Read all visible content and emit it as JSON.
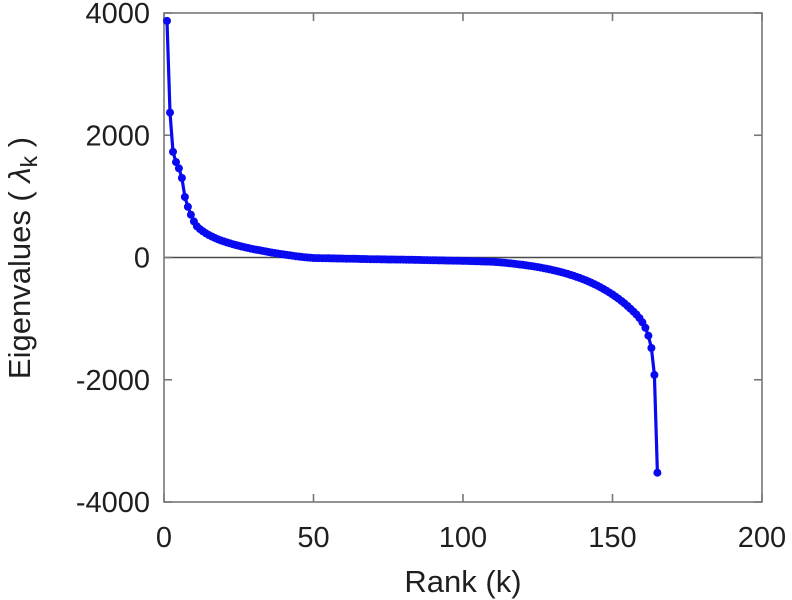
{
  "chart_data": {
    "type": "line",
    "title": "",
    "xlabel": "Rank (k)",
    "ylabel": "Eigenvalues ( λ_k )",
    "ylabel_parts": {
      "prefix": "Eigenvalues ( ",
      "symbol": "λ",
      "subscript": "k",
      "suffix": " )"
    },
    "xlim": [
      0,
      200
    ],
    "ylim": [
      -4000,
      4000
    ],
    "xticks": [
      0,
      50,
      100,
      150,
      200
    ],
    "yticks": [
      -4000,
      -2000,
      0,
      2000,
      4000
    ],
    "grid": false,
    "zero_line": true,
    "box": true,
    "legend": null,
    "series": [
      {
        "name": "eigenvalues",
        "marker": "circle",
        "x_start": 1,
        "x_step": 1,
        "values": [
          3870,
          2370,
          1730,
          1560,
          1460,
          1300,
          990,
          830,
          700,
          590,
          510,
          465,
          428,
          396,
          368,
          343,
          320,
          299,
          280,
          263,
          247,
          232,
          218,
          205,
          192,
          180,
          168,
          157,
          146,
          136,
          126,
          117,
          108,
          99,
          90,
          82,
          74,
          66,
          58,
          50,
          43,
          36,
          29,
          22,
          16,
          10,
          5,
          0,
          -4,
          -8,
          -9,
          -10,
          -11,
          -12,
          -13,
          -14,
          -15,
          -16,
          -17,
          -18,
          -19,
          -20,
          -21,
          -22,
          -23,
          -24,
          -25,
          -26,
          -27,
          -28,
          -29,
          -30,
          -31,
          -31,
          -32,
          -33,
          -33,
          -34,
          -35,
          -35,
          -36,
          -37,
          -38,
          -39,
          -40,
          -41,
          -42,
          -43,
          -44,
          -45,
          -46,
          -47,
          -48,
          -49,
          -50,
          -51,
          -52,
          -53,
          -54,
          -55,
          -56,
          -58,
          -59,
          -61,
          -62,
          -64,
          -65,
          -67,
          -68,
          -70,
          -74,
          -78,
          -82,
          -87,
          -92,
          -97,
          -102,
          -108,
          -114,
          -120,
          -127,
          -134,
          -141,
          -149,
          -157,
          -166,
          -175,
          -185,
          -195,
          -206,
          -217,
          -229,
          -242,
          -255,
          -269,
          -284,
          -300,
          -317,
          -334,
          -353,
          -372,
          -393,
          -415,
          -438,
          -462,
          -488,
          -515,
          -543,
          -574,
          -605,
          -639,
          -674,
          -712,
          -751,
          -793,
          -837,
          -883,
          -932,
          -990,
          -1060,
          -1150,
          -1280,
          -1480,
          -1920,
          -3520
        ]
      }
    ],
    "colors": {
      "line": "#0a0af0",
      "marker": "#0a0af0",
      "axis_box": "#777777",
      "zero_line": "#4a4a4a",
      "text": "#1f1f1f",
      "background": "#ffffff"
    }
  }
}
